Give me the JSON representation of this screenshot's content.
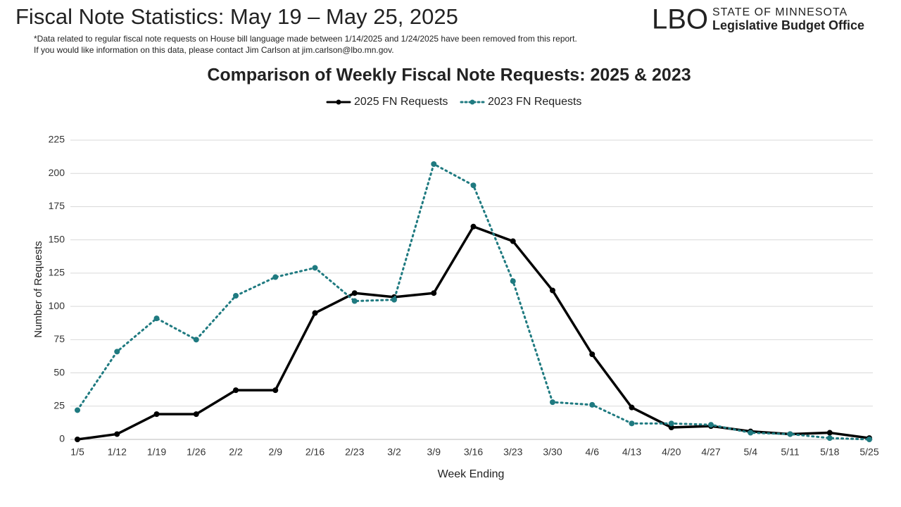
{
  "header": {
    "title": "Fiscal Note Statistics: May 19 – May 25, 2025",
    "note_lines": [
      "*Data related to regular fiscal note requests on House bill language made between 1/14/2025 and 1/24/2025 have been removed from this report.",
      "If you would like information on this data, please contact Jim Carlson at jim.carlson@lbo.mn.gov."
    ],
    "logo": {
      "mark": "LBO",
      "line1": "STATE OF MINNESOTA",
      "line2": "Legislative Budget Office"
    }
  },
  "chart_data": {
    "type": "line",
    "title": "Comparison of Weekly Fiscal Note Requests: 2025 & 2023",
    "x_label": "Week Ending",
    "y_label": "Number of Requests",
    "categories": [
      "1/5",
      "1/12",
      "1/19",
      "1/26",
      "2/2",
      "2/9",
      "2/16",
      "2/23",
      "3/2",
      "3/9",
      "3/16",
      "3/23",
      "3/30",
      "4/6",
      "4/13",
      "4/20",
      "4/27",
      "5/4",
      "5/11",
      "5/18",
      "5/25"
    ],
    "series": [
      {
        "name": "2025 FN Requests",
        "color": "#000000",
        "style": "solid",
        "values": [
          0,
          4,
          19,
          19,
          37,
          37,
          95,
          110,
          107,
          110,
          160,
          149,
          112,
          64,
          24,
          9,
          10,
          6,
          4,
          5,
          1
        ]
      },
      {
        "name": "2023 FN Requests",
        "color": "#1f7a80",
        "style": "dotted",
        "values": [
          22,
          66,
          91,
          75,
          108,
          122,
          129,
          104,
          105,
          207,
          191,
          119,
          28,
          26,
          12,
          12,
          11,
          5,
          4,
          1,
          0
        ]
      }
    ],
    "ylim": [
      0,
      225
    ],
    "yticks": [
      0,
      25,
      50,
      75,
      100,
      125,
      150,
      175,
      200,
      225
    ],
    "grid": true,
    "legend": "top"
  }
}
